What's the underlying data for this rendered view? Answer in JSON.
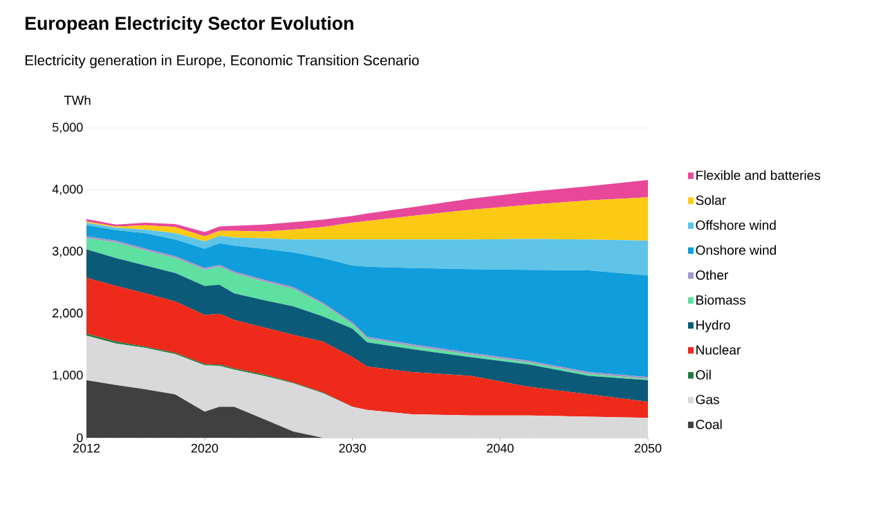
{
  "chart_data": {
    "type": "area",
    "title": "European Electricity Sector Evolution",
    "subtitle": "Electricity generation in Europe, Economic Transition Scenario",
    "ylabel": "TWh",
    "stacked": true,
    "legend": "right",
    "grid": "y",
    "x": [
      2012,
      2014,
      2016,
      2018,
      2020,
      2021,
      2022,
      2024,
      2026,
      2028,
      2030,
      2031,
      2034,
      2038,
      2042,
      2046,
      2050
    ],
    "xlim": [
      2012,
      2050
    ],
    "xticks": [
      2012,
      2020,
      2030,
      2040,
      2050
    ],
    "ylim": [
      0,
      5000
    ],
    "yticks": [
      0,
      {
        "value": 1000,
        "label": "1,000"
      },
      {
        "value": 2000,
        "label": "2,000"
      },
      {
        "value": 3000,
        "label": "3,000"
      },
      {
        "value": 4000,
        "label": "4,000"
      },
      {
        "value": 5000,
        "label": "5,000"
      }
    ],
    "series": [
      {
        "name": "Coal",
        "color": "#404040",
        "values": [
          930,
          850,
          780,
          700,
          420,
          500,
          500,
          300,
          100,
          0,
          0,
          0,
          0,
          0,
          0,
          0,
          0
        ]
      },
      {
        "name": "Gas",
        "color": "#d9d9d9",
        "values": [
          720,
          670,
          670,
          650,
          750,
          660,
          600,
          700,
          780,
          720,
          500,
          450,
          380,
          360,
          360,
          340,
          320
        ]
      },
      {
        "name": "Oil",
        "color": "#1e7b3e",
        "values": [
          30,
          30,
          20,
          20,
          20,
          20,
          20,
          20,
          10,
          10,
          0,
          0,
          0,
          0,
          0,
          0,
          0
        ]
      },
      {
        "name": "Nuclear",
        "color": "#ee2a1b",
        "values": [
          900,
          900,
          860,
          830,
          790,
          820,
          780,
          760,
          770,
          820,
          800,
          700,
          680,
          640,
          460,
          360,
          260
        ]
      },
      {
        "name": "Hydro",
        "color": "#0b5a78",
        "values": [
          460,
          450,
          450,
          460,
          470,
          470,
          430,
          440,
          460,
          410,
          460,
          390,
          370,
          300,
          360,
          300,
          350
        ]
      },
      {
        "name": "Biomass",
        "color": "#5ee0a0",
        "values": [
          180,
          250,
          240,
          240,
          260,
          290,
          320,
          300,
          280,
          190,
          70,
          60,
          50,
          40,
          30,
          30,
          20
        ]
      },
      {
        "name": "Other",
        "color": "#a397c7",
        "values": [
          30,
          30,
          30,
          30,
          30,
          30,
          30,
          30,
          30,
          30,
          30,
          30,
          30,
          30,
          30,
          30,
          30
        ]
      },
      {
        "name": "Onshore wind",
        "color": "#109ddb",
        "values": [
          180,
          170,
          250,
          270,
          310,
          350,
          420,
          500,
          560,
          720,
          920,
          1130,
          1230,
          1350,
          1470,
          1640,
          1640
        ]
      },
      {
        "name": "Offshore wind",
        "color": "#5fc4e8",
        "values": [
          40,
          40,
          60,
          100,
          120,
          120,
          130,
          170,
          210,
          300,
          420,
          440,
          460,
          480,
          500,
          500,
          560
        ]
      },
      {
        "name": "Solar",
        "color": "#fcc915",
        "values": [
          20,
          20,
          70,
          100,
          80,
          80,
          110,
          110,
          160,
          200,
          270,
          300,
          380,
          480,
          550,
          630,
          700
        ]
      },
      {
        "name": "Flexible and batteries",
        "color": "#e8489a",
        "values": [
          40,
          30,
          40,
          50,
          70,
          70,
          80,
          110,
          120,
          120,
          110,
          120,
          140,
          180,
          210,
          230,
          280
        ]
      }
    ]
  }
}
